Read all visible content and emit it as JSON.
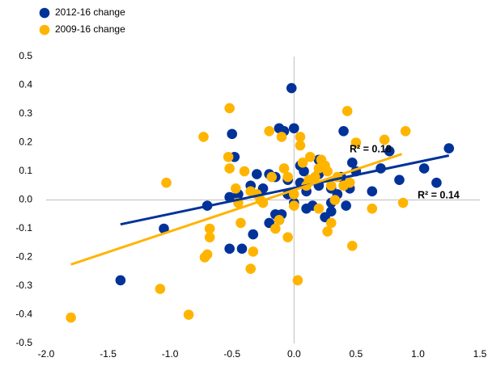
{
  "chart_data": {
    "type": "scatter",
    "xlim": [
      -2.0,
      1.5
    ],
    "xticks": [
      {
        "value": -2,
        "label": "-2.0"
      },
      -1.5,
      {
        "value": -1,
        "label": "-1.0"
      },
      -0.5,
      {
        "value": 0,
        "label": "0.0"
      },
      0.5,
      {
        "value": 1,
        "label": "1.0"
      },
      1.5
    ],
    "ylim": [
      -0.5,
      0.5
    ],
    "yticks": [
      -0.5,
      -0.4,
      -0.3,
      -0.2,
      -0.1,
      {
        "value": 0,
        "label": "0.0"
      },
      0.1,
      0.2,
      0.3,
      0.4,
      0.5
    ],
    "grid": false,
    "legend": "top-left",
    "annotations": [
      "R² = 0.18",
      "R² = 0.14"
    ],
    "series": [
      {
        "name": "2012-16 change",
        "color": "#003299",
        "x": [
          -1.4,
          -1.05,
          -0.7,
          -0.52,
          -0.42,
          -0.33,
          -0.48,
          -0.5,
          -0.2,
          -0.15,
          -0.1,
          -0.12,
          -0.3,
          -0.25,
          -0.35,
          -0.45,
          -0.52,
          -0.2,
          -0.15,
          -0.12,
          -0.08,
          0.0,
          -0.02,
          0.05,
          0.05,
          0.0,
          -0.05,
          0.08,
          0.1,
          0.15,
          0.2,
          0.2,
          0.25,
          0.3,
          0.3,
          0.35,
          0.4,
          0.45,
          0.47,
          0.5,
          0.38,
          0.42,
          0.63,
          0.7,
          0.77,
          0.85,
          1.05,
          1.15,
          1.25,
          0.2,
          0.1,
          -0.05,
          0.3
        ],
        "y": [
          -0.28,
          -0.1,
          -0.02,
          -0.17,
          -0.17,
          -0.12,
          0.15,
          0.23,
          -0.08,
          -0.05,
          -0.05,
          -0.07,
          0.09,
          0.04,
          0.05,
          0.02,
          0.01,
          0.09,
          0.08,
          0.25,
          0.24,
          0.25,
          0.39,
          0.12,
          0.06,
          -0.01,
          0.02,
          0.1,
          0.03,
          -0.02,
          0.05,
          0.14,
          -0.06,
          -0.04,
          -0.01,
          0.02,
          0.24,
          0.04,
          0.13,
          0.1,
          0.08,
          -0.02,
          0.03,
          0.11,
          0.17,
          0.07,
          0.11,
          0.06,
          0.18,
          0.09,
          -0.03,
          0.07,
          0.04
        ],
        "trendline": {
          "x": [
            -1.4,
            1.25
          ],
          "y": [
            -0.085,
            0.155
          ]
        }
      },
      {
        "name": "2009-16 change",
        "color": "#ffb400",
        "x": [
          -1.8,
          -1.08,
          -0.85,
          -1.03,
          -0.73,
          -0.72,
          -0.7,
          -0.68,
          -0.68,
          -0.52,
          -0.53,
          -0.52,
          -0.47,
          -0.45,
          -0.43,
          -0.4,
          -0.35,
          -0.33,
          -0.35,
          -0.3,
          -0.27,
          -0.25,
          -0.2,
          -0.18,
          -0.15,
          -0.12,
          -0.1,
          -0.08,
          -0.05,
          -0.05,
          0.0,
          0.0,
          0.03,
          0.05,
          0.05,
          0.07,
          0.1,
          0.12,
          0.13,
          0.17,
          0.2,
          0.2,
          0.25,
          0.27,
          0.27,
          0.3,
          0.3,
          0.33,
          0.35,
          0.4,
          0.43,
          0.45,
          0.47,
          0.5,
          0.63,
          0.73,
          0.88,
          0.9,
          0.22
        ],
        "y": [
          -0.41,
          -0.31,
          -0.4,
          0.06,
          0.22,
          -0.2,
          -0.19,
          -0.13,
          -0.1,
          0.32,
          0.15,
          0.11,
          0.04,
          -0.01,
          -0.08,
          0.1,
          0.03,
          -0.18,
          -0.24,
          0.02,
          0.0,
          -0.01,
          0.24,
          0.08,
          -0.1,
          -0.07,
          0.22,
          0.11,
          0.08,
          -0.13,
          0.02,
          -0.02,
          -0.28,
          0.22,
          0.19,
          0.13,
          0.05,
          0.07,
          0.15,
          0.08,
          -0.03,
          0.11,
          0.12,
          0.1,
          -0.11,
          -0.08,
          0.05,
          0.0,
          0.08,
          0.05,
          0.31,
          0.06,
          -0.16,
          0.2,
          -0.03,
          0.21,
          -0.01,
          0.24,
          0.14
        ],
        "trendline": {
          "x": [
            -1.8,
            0.87
          ],
          "y": [
            -0.225,
            0.16
          ]
        }
      }
    ]
  }
}
